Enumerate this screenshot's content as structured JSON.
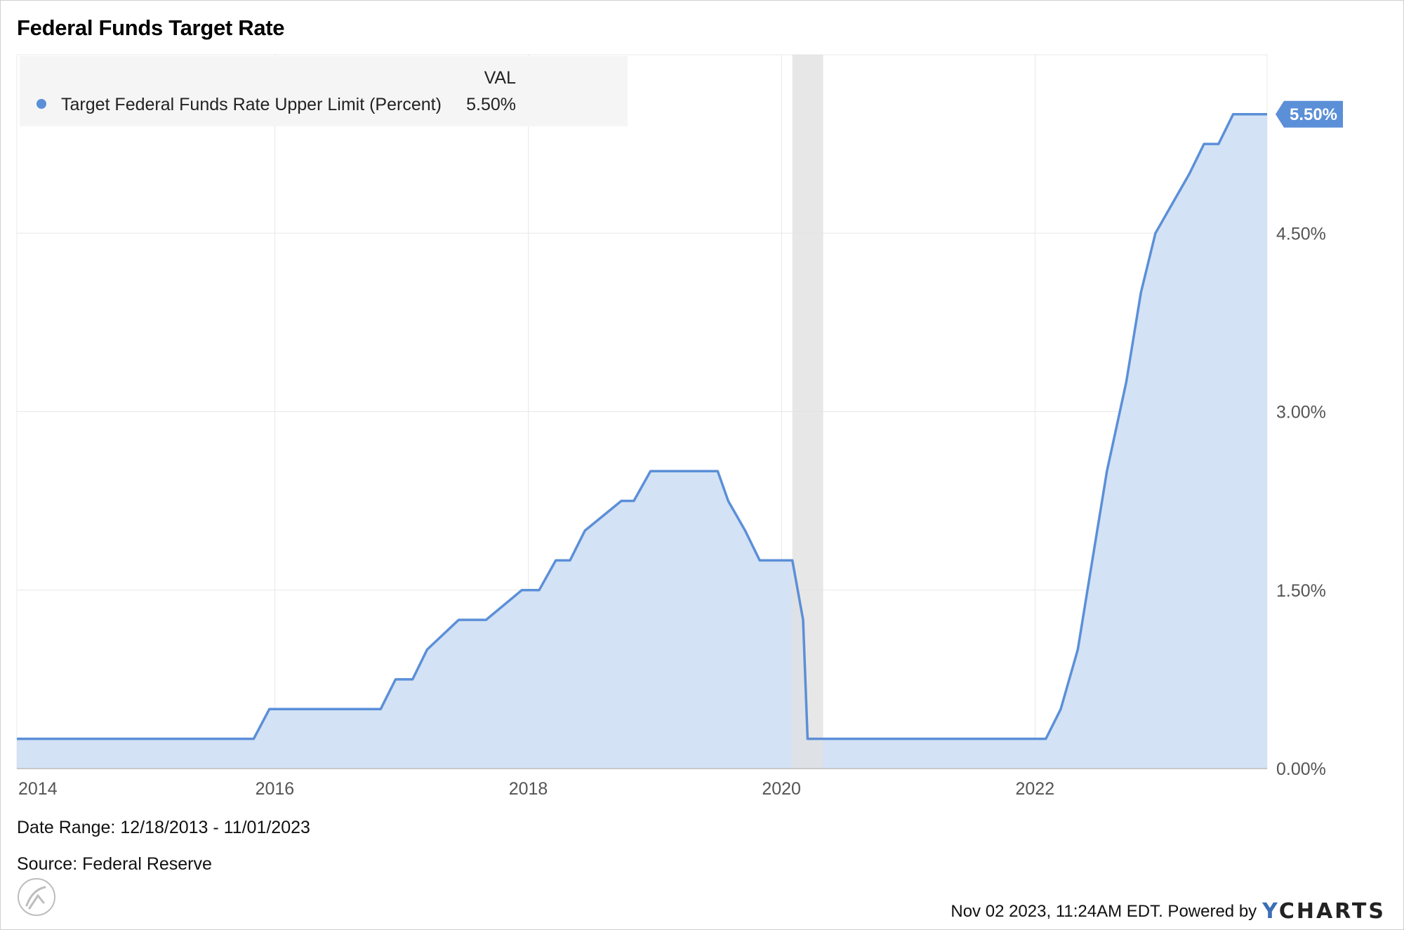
{
  "title": "Federal Funds Target Rate",
  "legend": {
    "header": "VAL",
    "series_label": "Target Federal Funds Rate Upper Limit (Percent)",
    "series_value": "5.50%"
  },
  "end_label": "5.50%",
  "footer": {
    "date_range": "Date Range: 12/18/2013 - 11/01/2023",
    "source": "Source: Federal Reserve",
    "timestamp": "Nov 02 2023, 11:24AM EDT. Powered by",
    "brand_y": "Y",
    "brand_rest": "CHARTS"
  },
  "colors": {
    "line": "#5b8fd8",
    "fill": "#d3e2f5",
    "recession": "#e1e1e1",
    "grid": "#e8e8e8",
    "legend_bg": "#f5f5f5",
    "end_label_bg": "#5b8fd8"
  },
  "icons": {
    "logo": "ycharts-circle-logo-icon"
  },
  "chart_data": {
    "type": "area",
    "x_range": [
      "2013-12-18",
      "2023-11-01"
    ],
    "ylim": [
      0,
      6
    ],
    "y_ticks": [
      {
        "value": 0,
        "label": "0.00%"
      },
      {
        "value": 1.5,
        "label": "1.50%"
      },
      {
        "value": 3,
        "label": "3.00%"
      },
      {
        "value": 4.5,
        "label": "4.50%"
      }
    ],
    "x_ticks": [
      {
        "date": "2014-01-01",
        "label": "2014"
      },
      {
        "date": "2016-01-01",
        "label": "2016"
      },
      {
        "date": "2018-01-01",
        "label": "2018"
      },
      {
        "date": "2020-01-01",
        "label": "2020"
      },
      {
        "date": "2022-01-01",
        "label": "2022"
      }
    ],
    "x_gridlines": [
      "2016-01-01",
      "2018-01-01",
      "2020-01-01",
      "2022-01-01",
      "2023-11-01"
    ],
    "shaded_periods": [
      {
        "start": "2020-02-01",
        "end": "2020-04-30",
        "label": "recession"
      }
    ],
    "grid": true,
    "legend_position": "top-left",
    "series": [
      {
        "name": "Target Federal Funds Rate Upper Limit (Percent)",
        "points": [
          [
            "2013-12-18",
            0.25
          ],
          [
            "2015-11-01",
            0.25
          ],
          [
            "2015-12-16",
            0.5
          ],
          [
            "2016-11-01",
            0.5
          ],
          [
            "2016-12-14",
            0.75
          ],
          [
            "2017-02-01",
            0.75
          ],
          [
            "2017-03-15",
            1.0
          ],
          [
            "2017-06-14",
            1.25
          ],
          [
            "2017-09-01",
            1.25
          ],
          [
            "2017-12-13",
            1.5
          ],
          [
            "2018-02-01",
            1.5
          ],
          [
            "2018-03-21",
            1.75
          ],
          [
            "2018-05-01",
            1.75
          ],
          [
            "2018-06-13",
            2.0
          ],
          [
            "2018-09-26",
            2.25
          ],
          [
            "2018-11-01",
            2.25
          ],
          [
            "2018-12-19",
            2.5
          ],
          [
            "2019-07-01",
            2.5
          ],
          [
            "2019-07-31",
            2.25
          ],
          [
            "2019-09-18",
            2.0
          ],
          [
            "2019-10-30",
            1.75
          ],
          [
            "2020-02-01",
            1.75
          ],
          [
            "2020-03-03",
            1.25
          ],
          [
            "2020-03-16",
            0.25
          ],
          [
            "2022-02-01",
            0.25
          ],
          [
            "2022-03-16",
            0.5
          ],
          [
            "2022-05-04",
            1.0
          ],
          [
            "2022-06-15",
            1.75
          ],
          [
            "2022-07-27",
            2.5
          ],
          [
            "2022-09-21",
            3.25
          ],
          [
            "2022-11-02",
            4.0
          ],
          [
            "2022-12-14",
            4.5
          ],
          [
            "2023-02-01",
            4.75
          ],
          [
            "2023-03-22",
            5.0
          ],
          [
            "2023-05-03",
            5.25
          ],
          [
            "2023-06-14",
            5.25
          ],
          [
            "2023-07-26",
            5.5
          ],
          [
            "2023-11-01",
            5.5
          ]
        ]
      }
    ]
  }
}
